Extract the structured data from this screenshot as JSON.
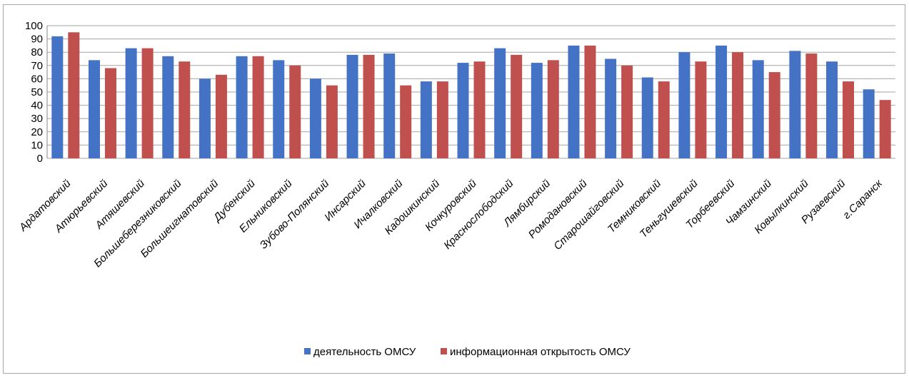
{
  "chart_data": {
    "type": "bar",
    "categories": [
      "Ардатовский",
      "Атюрьевский",
      "Атяшевский",
      "Большеберезниковский",
      "Большеигнатовский",
      "Дубенский",
      "Ельниковский",
      "Зубово-Полянский",
      "Инсарский",
      "Ичалковский",
      "Кадошкинский",
      "Кочкуровский",
      "Краснослободский",
      "Лямбирский",
      "Ромодановский",
      "Старошайговский",
      "Темниковский",
      "Теньгушевский",
      "Торбеевский",
      "Чамзинский",
      "Ковылкинский",
      "Рузаевский",
      "г.Саранск"
    ],
    "series": [
      {
        "name": "деятельность ОМСУ",
        "color": "#4472c4",
        "values": [
          92,
          74,
          83,
          77,
          60,
          77,
          74,
          60,
          78,
          79,
          58,
          72,
          83,
          72,
          85,
          75,
          61,
          80,
          85,
          74,
          81,
          73,
          52
        ]
      },
      {
        "name": "информационная открытость ОМСУ",
        "color": "#c0504d",
        "values": [
          95,
          68,
          83,
          73,
          63,
          77,
          70,
          55,
          78,
          55,
          58,
          73,
          78,
          74,
          85,
          70,
          58,
          73,
          80,
          65,
          79,
          58,
          44
        ]
      }
    ],
    "ylim": [
      0,
      100
    ],
    "yticks": [
      0,
      10,
      20,
      30,
      40,
      50,
      60,
      70,
      80,
      90,
      100
    ],
    "grid": true,
    "legend": "bottom"
  }
}
